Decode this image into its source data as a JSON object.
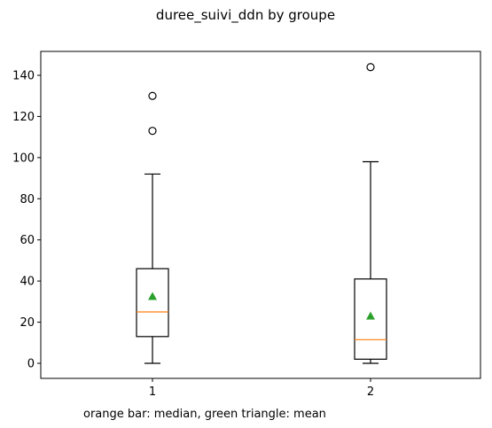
{
  "chart_data": {
    "type": "box",
    "title": "duree_suivi_ddn by groupe",
    "caption": "orange bar: median, green triangle: mean",
    "xlabel": "",
    "ylabel": "",
    "categories": [
      "1",
      "2"
    ],
    "ylim": [
      -7,
      152
    ],
    "yticks": [
      0,
      20,
      40,
      60,
      80,
      100,
      120,
      140
    ],
    "grid": false,
    "boxes": [
      {
        "name": "1",
        "whisker_low": 0,
        "q1": 13,
        "median": 25,
        "q3": 46,
        "whisker_high": 92,
        "mean": 32.5,
        "outliers": [
          113,
          130
        ]
      },
      {
        "name": "2",
        "whisker_low": 0,
        "q1": 2,
        "median": 11.5,
        "q3": 41,
        "whisker_high": 98,
        "mean": 23,
        "outliers": [
          144
        ]
      }
    ],
    "colors": {
      "box": "#000000",
      "median": "#ff7f0e",
      "mean": "#2ca02c",
      "outlier": "#000000"
    }
  }
}
